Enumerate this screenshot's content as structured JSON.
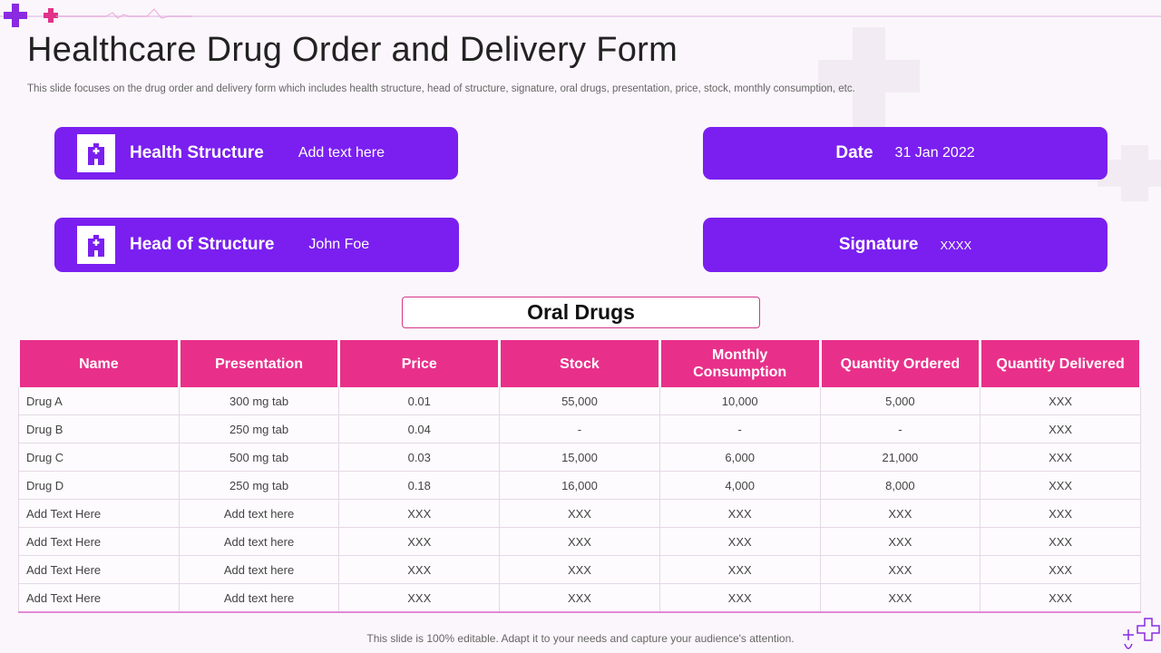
{
  "page": {
    "title": "Healthcare Drug Order and Delivery Form",
    "subtitle": "This slide focuses on the drug order and delivery form which includes health structure, head of structure, signature, oral drugs, presentation, price, stock, monthly consumption, etc.",
    "footer": "This slide is 100% editable. Adapt it to your needs and capture your audience's attention."
  },
  "colors": {
    "card_purple": "#7a1ff0",
    "header_pink": "#e8308a",
    "accent_purple": "#8a2be2",
    "accent_pink": "#e0338a"
  },
  "info": {
    "health_structure": {
      "label": "Health Structure",
      "value": "Add text here",
      "icon": "hospital-icon"
    },
    "head_of_structure": {
      "label": "Head of Structure",
      "value": "John Foe",
      "icon": "hospital-icon"
    },
    "date": {
      "label": "Date",
      "value": "31 Jan 2022"
    },
    "signature": {
      "label": "Signature",
      "value": "XXXX"
    }
  },
  "section_title": "Oral Drugs",
  "table": {
    "headers": [
      "Name",
      "Presentation",
      "Price",
      "Stock",
      "Monthly Consumption",
      "Quantity Ordered",
      "Quantity Delivered"
    ],
    "rows": [
      [
        "Drug A",
        "300 mg tab",
        "0.01",
        "55,000",
        "10,000",
        "5,000",
        "XXX"
      ],
      [
        "Drug B",
        "250 mg tab",
        "0.04",
        "-",
        "-",
        "-",
        "XXX"
      ],
      [
        "Drug C",
        "500 mg tab",
        "0.03",
        "15,000",
        "6,000",
        "21,000",
        "XXX"
      ],
      [
        "Drug D",
        "250 mg tab",
        "0.18",
        "16,000",
        "4,000",
        "8,000",
        "XXX"
      ],
      [
        "Add Text Here",
        "Add text here",
        "XXX",
        "XXX",
        "XXX",
        "XXX",
        "XXX"
      ],
      [
        "Add Text Here",
        "Add text here",
        "XXX",
        "XXX",
        "XXX",
        "XXX",
        "XXX"
      ],
      [
        "Add Text Here",
        "Add text here",
        "XXX",
        "XXX",
        "XXX",
        "XXX",
        "XXX"
      ],
      [
        "Add Text Here",
        "Add text here",
        "XXX",
        "XXX",
        "XXX",
        "XXX",
        "XXX"
      ]
    ]
  }
}
